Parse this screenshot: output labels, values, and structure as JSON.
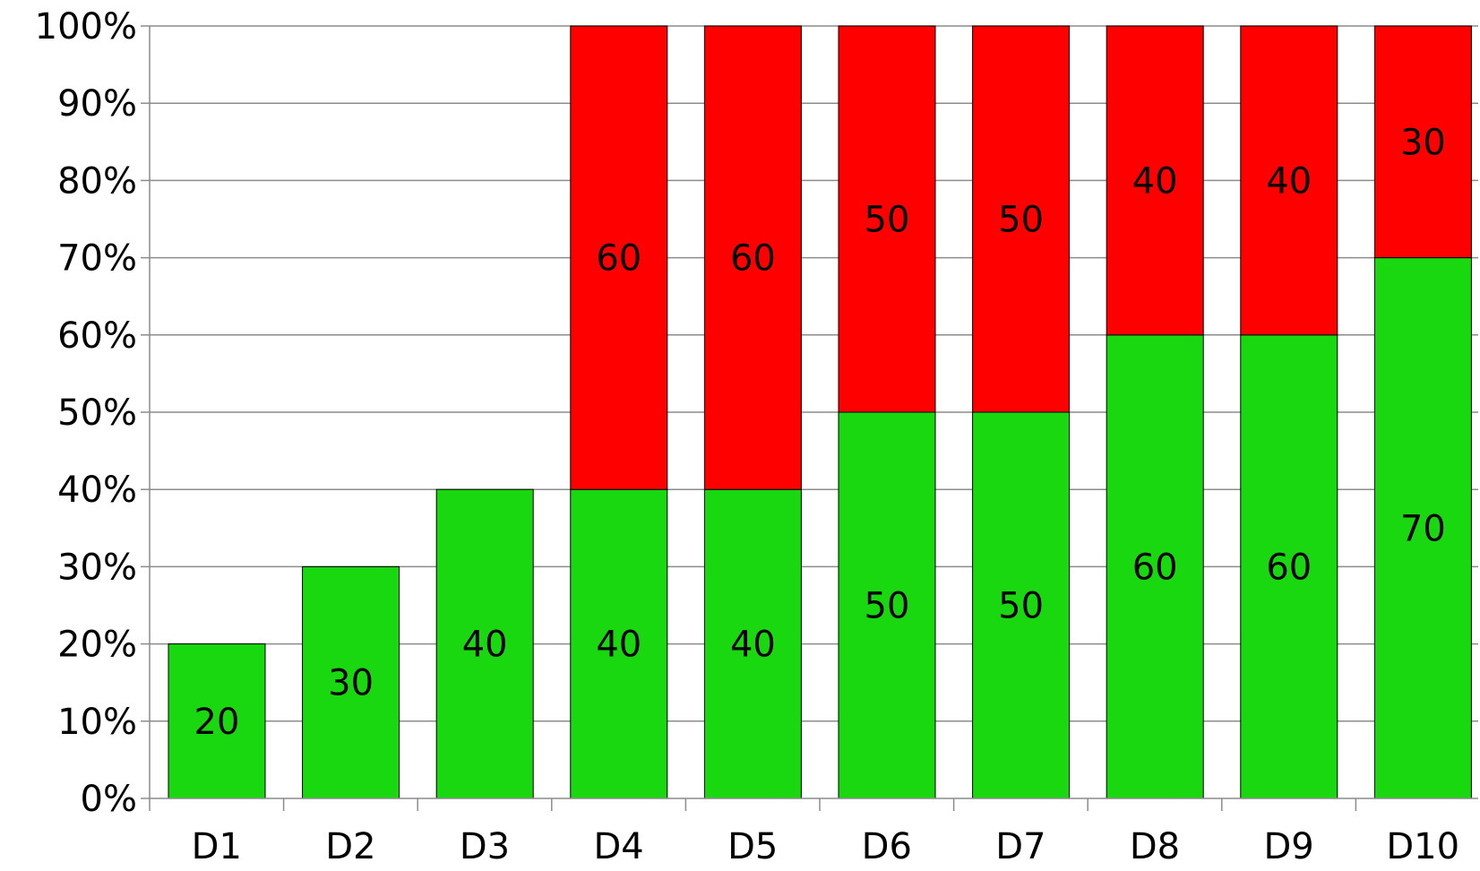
{
  "chart_data": {
    "type": "bar",
    "stacked": true,
    "percent_axis": true,
    "title": "",
    "xlabel": "",
    "ylabel": "",
    "categories": [
      "D1",
      "D2",
      "D3",
      "D4",
      "D5",
      "D6",
      "D7",
      "D8",
      "D9",
      "D10"
    ],
    "series": [
      {
        "color": "#1ad80f",
        "values": [
          20,
          30,
          40,
          40,
          40,
          50,
          50,
          60,
          60,
          70
        ],
        "labels": [
          "20",
          "30",
          "40",
          "40",
          "40",
          "50",
          "50",
          "60",
          "60",
          "70"
        ]
      },
      {
        "color": "#fe0000",
        "values": [
          0,
          0,
          0,
          60,
          60,
          50,
          50,
          40,
          40,
          30
        ],
        "labels": [
          "",
          "",
          "",
          "60",
          "60",
          "50",
          "50",
          "40",
          "40",
          "30"
        ]
      }
    ],
    "ylim": [
      0,
      100
    ],
    "yticks": [
      0,
      10,
      20,
      30,
      40,
      50,
      60,
      70,
      80,
      90,
      100
    ],
    "ytick_labels": [
      "0%",
      "10%",
      "20%",
      "30%",
      "40%",
      "50%",
      "60%",
      "70%",
      "80%",
      "90%",
      "100%"
    ],
    "grid": true,
    "legend": "none"
  }
}
